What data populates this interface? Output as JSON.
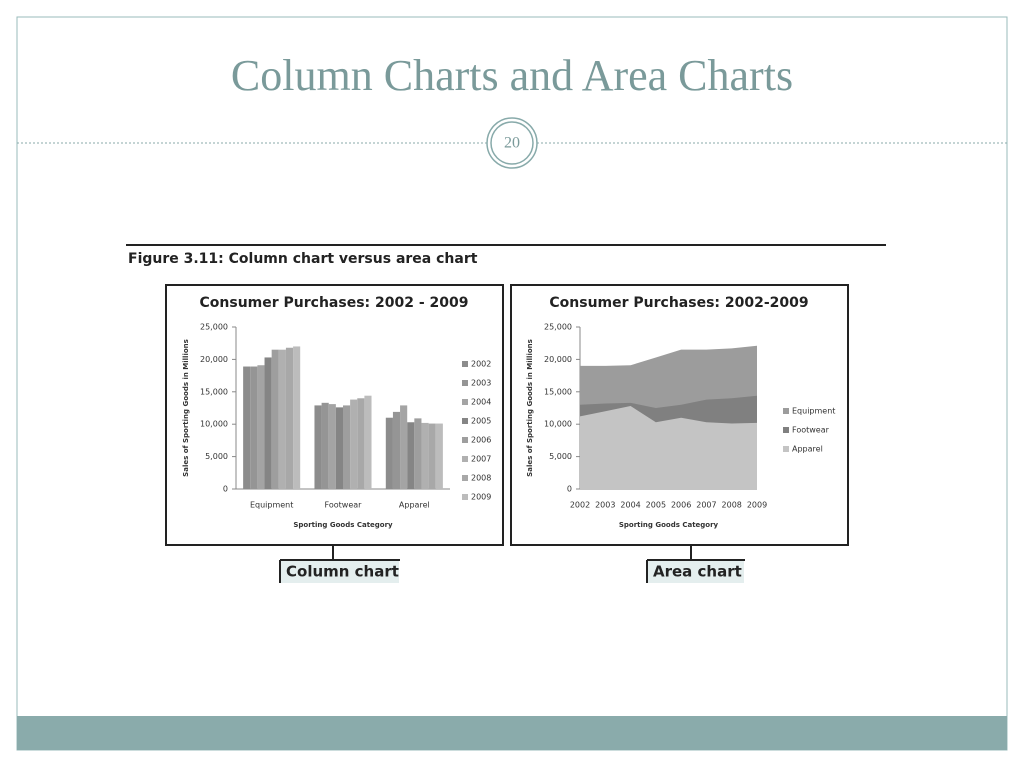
{
  "slide": {
    "title": "Column Charts and Area Charts",
    "page_number": "20",
    "figure_caption": "Figure 3.11: Column chart versus area chart",
    "callouts": [
      "Column chart",
      "Area chart"
    ]
  },
  "chart_data": [
    {
      "type": "bar",
      "title": "Consumer Purchases: 2002 - 2009",
      "y_label": "Sales of Sporting Goods in Millions",
      "x_label": "Sporting Goods Category",
      "categories": [
        "Equipment",
        "Footwear",
        "Apparel"
      ],
      "series": [
        {
          "name": "2002",
          "color": "#8c8c8c",
          "values": [
            18900,
            12900,
            11000
          ]
        },
        {
          "name": "2003",
          "color": "#959595",
          "values": [
            18900,
            13300,
            11900
          ]
        },
        {
          "name": "2004",
          "color": "#a4a4a4",
          "values": [
            19100,
            13100,
            12900
          ]
        },
        {
          "name": "2005",
          "color": "#858585",
          "values": [
            20300,
            12600,
            10300
          ]
        },
        {
          "name": "2006",
          "color": "#9e9e9e",
          "values": [
            21500,
            12900,
            10900
          ]
        },
        {
          "name": "2007",
          "color": "#b0b0b0",
          "values": [
            21500,
            13800,
            10200
          ]
        },
        {
          "name": "2008",
          "color": "#a8a8a8",
          "values": [
            21800,
            14000,
            10100
          ]
        },
        {
          "name": "2009",
          "color": "#bcbcbc",
          "values": [
            22000,
            14400,
            10100
          ]
        }
      ],
      "ylim": [
        0,
        25000
      ],
      "yticks": [
        0,
        {
          "value": 5000,
          "label": "5,000"
        },
        {
          "value": 10000,
          "label": "10,000"
        },
        {
          "value": 15000,
          "label": "15,000"
        },
        {
          "value": 20000,
          "label": "20,000"
        },
        {
          "value": 25000,
          "label": "25,000"
        }
      ]
    },
    {
      "type": "area",
      "title": "Consumer Purchases: 2002-2009",
      "y_label": "Sales of Sporting Goods in Millions",
      "x_label": "Sporting Goods Category",
      "categories": [
        "2002",
        "2003",
        "2004",
        "2005",
        "2006",
        "2007",
        "2008",
        "2009"
      ],
      "series": [
        {
          "name": "Equipment",
          "color": "#9c9c9c",
          "values": [
            19000,
            19000,
            19100,
            20300,
            21500,
            21500,
            21700,
            22100
          ]
        },
        {
          "name": "Footwear",
          "color": "#808080",
          "values": [
            13000,
            13200,
            13300,
            12500,
            13000,
            13800,
            14000,
            14400
          ]
        },
        {
          "name": "Apparel",
          "color": "#c4c4c4",
          "values": [
            11200,
            12000,
            12800,
            10300,
            11000,
            10300,
            10100,
            10200
          ]
        }
      ],
      "ylim": [
        0,
        25000
      ],
      "yticks": [
        0,
        {
          "value": 5000,
          "label": "5,000"
        },
        {
          "value": 10000,
          "label": "10,000"
        },
        {
          "value": 15000,
          "label": "15,000"
        },
        {
          "value": 20000,
          "label": "20,000"
        },
        {
          "value": 25000,
          "label": "25,000"
        }
      ]
    }
  ]
}
